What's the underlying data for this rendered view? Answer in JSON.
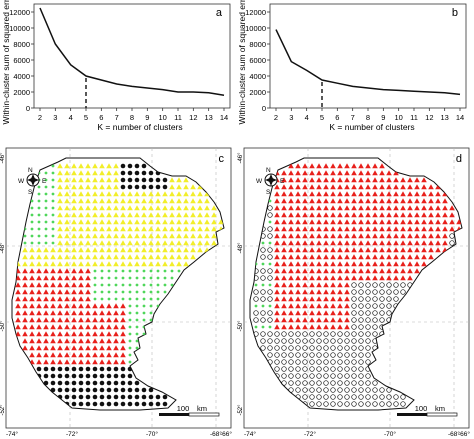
{
  "chart_data": [
    {
      "type": "line",
      "panel_label": "a",
      "xlabel": "K = number of clusters",
      "ylabel": "Within-cluster sum of squared errors",
      "x": [
        2,
        3,
        4,
        5,
        6,
        7,
        8,
        9,
        10,
        11,
        12,
        13,
        14
      ],
      "values": [
        12500,
        8000,
        5400,
        4000,
        3500,
        3000,
        2700,
        2500,
        2300,
        2000,
        2000,
        1900,
        1600
      ],
      "xticks": [
        2,
        3,
        4,
        5,
        6,
        7,
        8,
        9,
        10,
        11,
        12,
        13,
        14
      ],
      "yticks": [
        0,
        2000,
        4000,
        6000,
        8000,
        10000,
        12000
      ],
      "xlim": [
        2,
        14
      ],
      "ylim": [
        0,
        12000
      ],
      "marker_k": 5,
      "grid": false
    },
    {
      "type": "line",
      "panel_label": "b",
      "xlabel": "K = number of clusters",
      "ylabel": "Within-cluster sum of squared errors",
      "x": [
        2,
        3,
        4,
        5,
        6,
        7,
        8,
        9,
        10,
        11,
        12,
        13,
        14
      ],
      "values": [
        9800,
        5800,
        4700,
        3500,
        3100,
        2700,
        2500,
        2300,
        2200,
        2100,
        2000,
        1900,
        1700
      ],
      "xticks": [
        2,
        3,
        4,
        5,
        6,
        7,
        8,
        9,
        10,
        11,
        12,
        13,
        14
      ],
      "yticks": [
        0,
        2000,
        4000,
        6000,
        8000,
        10000,
        12000
      ],
      "xlim": [
        2,
        14
      ],
      "ylim": [
        0,
        12000
      ],
      "marker_k": 5,
      "grid": false
    }
  ],
  "maps": [
    {
      "panel_label": "c",
      "lon_labels": [
        "-74°",
        "-72°",
        "-70°",
        "-68°",
        "-66°"
      ],
      "lat_labels": [
        "-46°",
        "-48°",
        "-50°",
        "-52°"
      ],
      "scale_label": "100",
      "scale_unit": "km",
      "compass": {
        "n": "N",
        "s": "S",
        "e": "E",
        "w": "W"
      },
      "cluster_colors": {
        "red": "#e8201c",
        "yellow": "#f2ee2a",
        "green": "#4fd65a",
        "black": "#111111"
      }
    },
    {
      "panel_label": "d",
      "lon_labels": [
        "-74°",
        "-72°",
        "-70°",
        "-68°",
        "-66°"
      ],
      "lat_labels": [
        "-46°",
        "-48°",
        "-50°",
        "-52°"
      ],
      "scale_label": "100",
      "scale_unit": "km",
      "compass": {
        "n": "N",
        "s": "S",
        "e": "E",
        "w": "W"
      },
      "cluster_colors": {
        "red": "#e8201c",
        "circle": "#111111",
        "green": "#4fd65a"
      }
    }
  ]
}
